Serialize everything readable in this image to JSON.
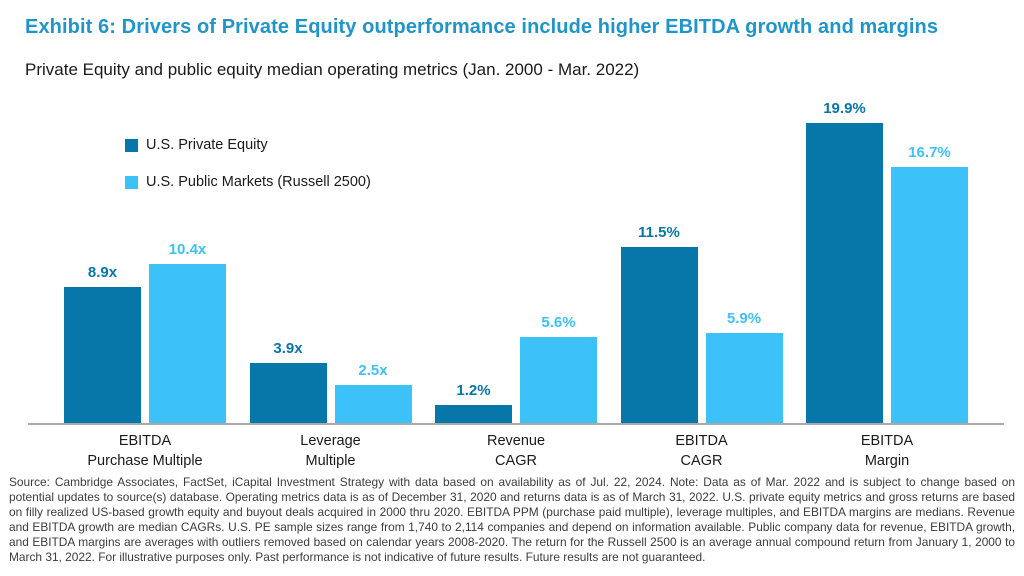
{
  "header": {
    "title": "Exhibit 6: Drivers of Private Equity outperformance include higher EBITDA growth and margins",
    "subtitle": "Private Equity and public equity median operating metrics (Jan. 2000 - Mar. 2022)"
  },
  "colors": {
    "title_blue": "#2095c9",
    "private_equity_dark_blue": "#0776a8",
    "public_markets_light_blue": "#3cc1f8",
    "axis_line_gray": "#aaaaaa",
    "body_text": "#1a1a1a",
    "footnote_text": "#3c3c3c"
  },
  "chart_data": {
    "type": "bar",
    "title": "Exhibit 6: Drivers of Private Equity outperformance include higher EBITDA growth and margins",
    "subtitle": "Private Equity and public equity median operating metrics (Jan. 2000 - Mar. 2022)",
    "categories": [
      "EBITDA Purchase Multiple",
      "Leverage Multiple",
      "Revenue CAGR",
      "EBITDA CAGR",
      "EBITDA Margin"
    ],
    "category_lines": [
      [
        "EBITDA",
        "Purchase Multiple"
      ],
      [
        "Leverage",
        "Multiple"
      ],
      [
        "Revenue",
        "CAGR"
      ],
      [
        "EBITDA",
        "CAGR"
      ],
      [
        "EBITDA",
        "Margin"
      ]
    ],
    "series": [
      {
        "name": "U.S. Private Equity",
        "color": "#0776a8",
        "values": [
          8.9,
          3.9,
          1.2,
          11.5,
          19.9
        ],
        "labels": [
          "8.9x",
          "3.9x",
          "1.2%",
          "11.5%",
          "19.9%"
        ]
      },
      {
        "name": "U.S. Public Markets (Russell 2500)",
        "color": "#3cc1f8",
        "values": [
          10.4,
          2.5,
          5.6,
          5.9,
          16.7
        ],
        "labels": [
          "10.4x",
          "2.5x",
          "5.6%",
          "5.9%",
          "16.7%"
        ]
      }
    ],
    "ylim": [
      0,
      21.2
    ],
    "xlabel": "",
    "ylabel": "",
    "grid": false,
    "y_axis_visible": false,
    "legend_position": "inside top-left",
    "value_labels": "above bars, colored to match series"
  },
  "footnote": "Source: Cambridge Associates, FactSet, iCapital Investment Strategy with data based on availability as of Jul. 22, 2024. Note: Data as of Mar. 2022 and is subject to change based on potential updates to source(s) database. Operating metrics data is as of December 31, 2020 and returns data is as of March 31, 2022. U.S. private equity metrics and gross returns are based on filly realized US-based growth equity and buyout deals acquired in 2000 thru 2020. EBITDA  PPM (purchase paid multiple), leverage multiples, and EBITDA margins are medians.  Revenue and EBITDA growth are median CAGRs. U.S. PE sample sizes range from 1,740 to 2,114 companies and depend on information available. Public company data for revenue, EBITDA growth, and EBITDA margins are averages with outliers removed based on calendar years 2008-2020. The return for the Russell 2500 is an average annual compound return from January 1, 2000 to March 31, 2022. For illustrative purposes only. Past performance is not indicative of future results. Future results are not guaranteed."
}
